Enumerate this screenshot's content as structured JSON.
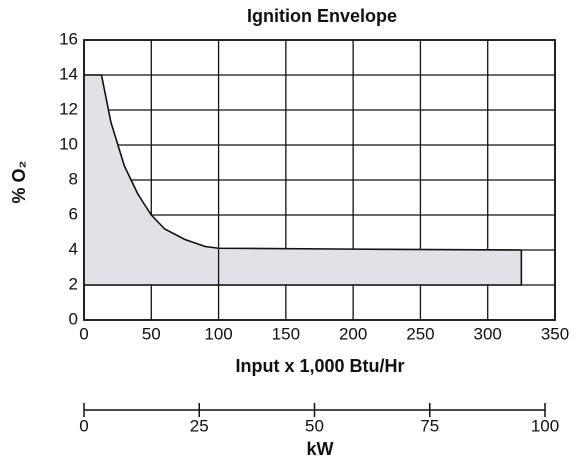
{
  "chart_data": {
    "type": "area",
    "title": "Ignition Envelope",
    "xlabel": "Input x 1,000 Btu/Hr",
    "ylabel": "% O₂",
    "x2label": "kW",
    "series": [
      {
        "x": [
          0,
          13,
          20,
          30,
          40,
          50,
          60,
          75,
          90,
          100,
          200,
          325
        ],
        "values": [
          14,
          14,
          11.3,
          8.8,
          7.2,
          6,
          5.2,
          4.6,
          4.2,
          4.1,
          4.05,
          4
        ]
      },
      {
        "x": [
          0,
          325
        ],
        "values": [
          2,
          2
        ]
      }
    ],
    "color": "#e1e1e7",
    "xlim": [
      0,
      350
    ],
    "xticks": [
      0,
      50,
      100,
      150,
      200,
      250,
      300,
      350
    ],
    "ylim": [
      0,
      16
    ],
    "yticks": [
      0,
      2,
      4,
      6,
      8,
      10,
      12,
      14,
      16
    ],
    "x2lim": [
      0,
      100
    ],
    "x2ticks": [
      0,
      25,
      50,
      75,
      100
    ],
    "grid": true
  }
}
